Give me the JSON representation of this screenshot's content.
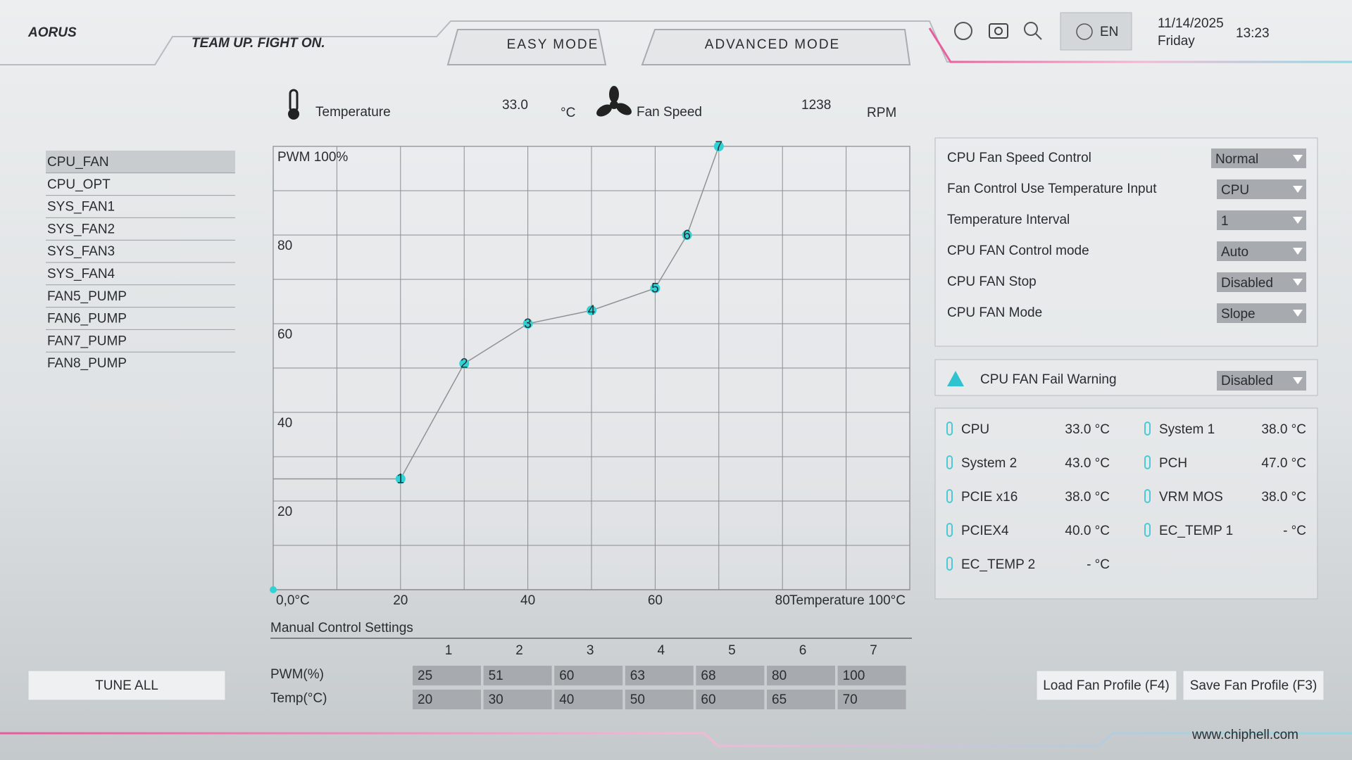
{
  "header": {
    "logo": "AORUS",
    "slogan": "TEAM UP. FIGHT ON.",
    "tabs": [
      "EASY MODE",
      "ADVANCED MODE"
    ],
    "language": "EN",
    "date": "11/14/2025",
    "day": "Friday",
    "time": "13:23"
  },
  "monitor": {
    "temperature_label": "Temperature",
    "temperature_value": "33.0",
    "temperature_unit": "°C",
    "fan_label": "Fan Speed",
    "fan_value": "1238",
    "fan_unit": "RPM"
  },
  "fans": {
    "items": [
      "CPU_FAN",
      "CPU_OPT",
      "SYS_FAN1",
      "SYS_FAN2",
      "SYS_FAN3",
      "SYS_FAN4",
      "FAN5_PUMP",
      "FAN6_PUMP",
      "FAN7_PUMP",
      "FAN8_PUMP"
    ],
    "selected": 0
  },
  "settings": [
    {
      "label": "CPU Fan Speed Control",
      "value": "Normal"
    },
    {
      "label": "Fan Control Use Temperature Input",
      "value": "CPU"
    },
    {
      "label": "Temperature Interval",
      "value": "1"
    },
    {
      "label": "CPU FAN Control mode",
      "value": "Auto"
    },
    {
      "label": "CPU FAN Stop",
      "value": "Disabled"
    },
    {
      "label": "CPU FAN Mode",
      "value": "Slope"
    }
  ],
  "warning": {
    "label": "CPU FAN Fail Warning",
    "value": "Disabled"
  },
  "sensors": [
    {
      "name": "CPU",
      "value": "33.0 °C"
    },
    {
      "name": "System 1",
      "value": "38.0 °C"
    },
    {
      "name": "System 2",
      "value": "43.0 °C"
    },
    {
      "name": "PCH",
      "value": "47.0 °C"
    },
    {
      "name": "PCIE x16",
      "value": "38.0 °C"
    },
    {
      "name": "VRM MOS",
      "value": "38.0 °C"
    },
    {
      "name": "PCIEX4",
      "value": "40.0 °C"
    },
    {
      "name": "EC_TEMP 1",
      "value": "- °C"
    },
    {
      "name": "EC_TEMP 2",
      "value": "- °C"
    }
  ],
  "manual": {
    "title": "Manual Control Settings",
    "row_labels": [
      "PWM(%)",
      "Temp(°C)"
    ]
  },
  "buttons": {
    "tune_all": "TUNE ALL",
    "load": "Load Fan Profile (F4)",
    "save": "Save Fan Profile (F3)"
  },
  "watermark": "www.chiphell.com",
  "chart_data": {
    "type": "line",
    "x": [
      20,
      30,
      40,
      50,
      60,
      65,
      70
    ],
    "values": [
      25,
      51,
      60,
      63,
      68,
      80,
      100
    ],
    "point_labels": [
      "1",
      "2",
      "3",
      "4",
      "5",
      "6",
      "7"
    ],
    "color": "#2fd3d6",
    "xlim": [
      0,
      100
    ],
    "ylim": [
      0,
      100
    ],
    "xticks": [
      {
        "value": 0,
        "label": "0,0°C"
      },
      20,
      40,
      60,
      80,
      {
        "value": 100,
        "label": "Temperature 100°C"
      }
    ],
    "yticks": [
      20,
      40,
      60,
      80,
      {
        "value": 100,
        "label": "PWM 100%"
      }
    ],
    "minor_xticks": [
      10,
      30,
      50,
      70,
      90
    ],
    "minor_yticks": [
      10,
      30,
      50,
      70,
      90
    ],
    "grid": true
  }
}
